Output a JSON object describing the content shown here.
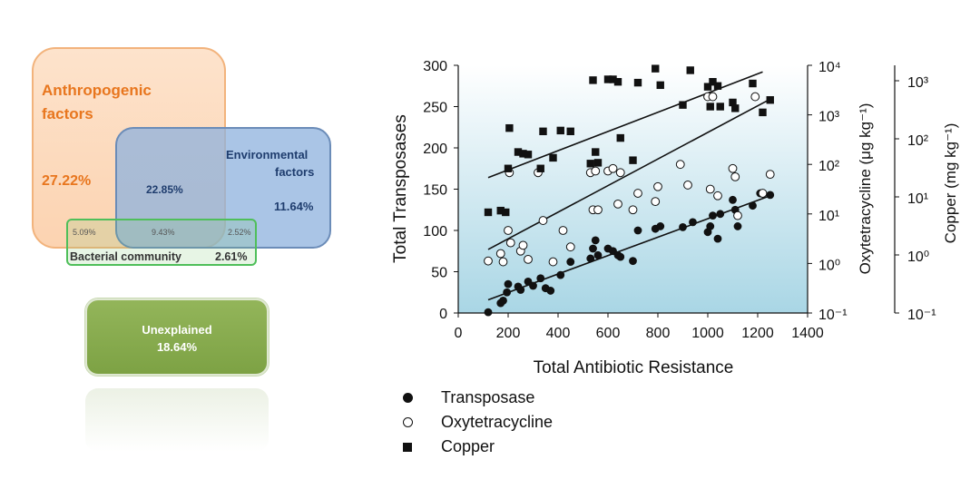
{
  "venn": {
    "anthropogenic": {
      "label_line1": "Anthropogenic",
      "label_line2": "factors",
      "value": "27.22%"
    },
    "environmental": {
      "label_line1": "Environmental",
      "label_line2": "factors",
      "value": "11.64%"
    },
    "overlap_anth_env": "22.85%",
    "bacterial": {
      "label": "Bacterial community",
      "value": "2.61%"
    },
    "overlap_anth_bac": "5.09%",
    "overlap_all": "9.43%",
    "overlap_env_bac": "2.52%",
    "unexplained": {
      "label": "Unexplained",
      "value": "18.64%"
    },
    "colors": {
      "anthropogenic": "#e8761e",
      "environmental": "#1f3d6e",
      "bacterial": "#333333",
      "unexplained": "#ffffff"
    }
  },
  "chart_data": {
    "type": "scatter",
    "xlabel": "Total Antibiotic Resistance",
    "ylabel": "Total Transposases",
    "xlim": [
      0,
      1400
    ],
    "ylim": [
      0,
      300
    ],
    "x_ticks": [
      "0",
      "200",
      "400",
      "600",
      "800",
      "1000",
      "1200",
      "1400"
    ],
    "y_ticks": [
      "0",
      "50",
      "100",
      "150",
      "200",
      "250",
      "300"
    ],
    "y2": {
      "label": "Oxytetracycline (μg kg⁻¹)",
      "scale": "log",
      "ticks": [
        "10⁻¹",
        "10⁰",
        "10¹",
        "10²",
        "10³",
        "10⁴"
      ]
    },
    "y3": {
      "label": "Copper (mg kg⁻¹)",
      "scale": "log",
      "ticks": [
        "10⁻¹",
        "10⁰",
        "10¹",
        "10²",
        "10³"
      ]
    },
    "background": [
      "#ffffff",
      "#a9d6e5"
    ],
    "legend_position": "bottom-left",
    "series": [
      {
        "name": "Transposase",
        "marker": "filled-circle",
        "points": [
          [
            120,
            1
          ],
          [
            170,
            12
          ],
          [
            180,
            15
          ],
          [
            195,
            25
          ],
          [
            200,
            35
          ],
          [
            240,
            32
          ],
          [
            250,
            28
          ],
          [
            280,
            38
          ],
          [
            300,
            33
          ],
          [
            330,
            42
          ],
          [
            350,
            30
          ],
          [
            370,
            27
          ],
          [
            410,
            46
          ],
          [
            450,
            62
          ],
          [
            530,
            66
          ],
          [
            540,
            78
          ],
          [
            550,
            88
          ],
          [
            560,
            70
          ],
          [
            600,
            78
          ],
          [
            620,
            75
          ],
          [
            640,
            70
          ],
          [
            650,
            68
          ],
          [
            700,
            63
          ],
          [
            720,
            100
          ],
          [
            790,
            102
          ],
          [
            810,
            105
          ],
          [
            900,
            104
          ],
          [
            940,
            110
          ],
          [
            1000,
            98
          ],
          [
            1010,
            105
          ],
          [
            1020,
            118
          ],
          [
            1040,
            90
          ],
          [
            1050,
            120
          ],
          [
            1100,
            137
          ],
          [
            1110,
            125
          ],
          [
            1120,
            105
          ],
          [
            1180,
            130
          ],
          [
            1210,
            145
          ],
          [
            1250,
            143
          ]
        ],
        "trend": [
          [
            120,
            16
          ],
          [
            1250,
            142
          ]
        ]
      },
      {
        "name": "Oxytetracycline",
        "marker": "open-circle",
        "points": [
          [
            120,
            63
          ],
          [
            170,
            72
          ],
          [
            180,
            62
          ],
          [
            200,
            100
          ],
          [
            205,
            170
          ],
          [
            210,
            85
          ],
          [
            250,
            75
          ],
          [
            260,
            82
          ],
          [
            280,
            65
          ],
          [
            320,
            170
          ],
          [
            340,
            112
          ],
          [
            380,
            62
          ],
          [
            420,
            100
          ],
          [
            450,
            80
          ],
          [
            530,
            170
          ],
          [
            540,
            125
          ],
          [
            550,
            172
          ],
          [
            560,
            125
          ],
          [
            600,
            172
          ],
          [
            620,
            175
          ],
          [
            640,
            132
          ],
          [
            650,
            170
          ],
          [
            700,
            125
          ],
          [
            720,
            145
          ],
          [
            790,
            135
          ],
          [
            800,
            153
          ],
          [
            890,
            180
          ],
          [
            920,
            155
          ],
          [
            1000,
            262
          ],
          [
            1010,
            150
          ],
          [
            1020,
            262
          ],
          [
            1040,
            142
          ],
          [
            1100,
            175
          ],
          [
            1110,
            165
          ],
          [
            1120,
            118
          ],
          [
            1190,
            262
          ],
          [
            1220,
            145
          ],
          [
            1250,
            168
          ]
        ],
        "trend": [
          [
            120,
            77
          ],
          [
            1250,
            259
          ]
        ]
      },
      {
        "name": "Copper",
        "marker": "filled-square",
        "points": [
          [
            120,
            122
          ],
          [
            170,
            124
          ],
          [
            190,
            122
          ],
          [
            200,
            175
          ],
          [
            205,
            224
          ],
          [
            240,
            195
          ],
          [
            260,
            193
          ],
          [
            280,
            192
          ],
          [
            330,
            175
          ],
          [
            340,
            220
          ],
          [
            380,
            188
          ],
          [
            410,
            221
          ],
          [
            450,
            220
          ],
          [
            530,
            181
          ],
          [
            540,
            282
          ],
          [
            550,
            195
          ],
          [
            560,
            182
          ],
          [
            600,
            283
          ],
          [
            620,
            283
          ],
          [
            640,
            280
          ],
          [
            650,
            212
          ],
          [
            700,
            185
          ],
          [
            720,
            279
          ],
          [
            790,
            296
          ],
          [
            810,
            276
          ],
          [
            900,
            252
          ],
          [
            930,
            294
          ],
          [
            1000,
            274
          ],
          [
            1010,
            250
          ],
          [
            1020,
            280
          ],
          [
            1040,
            275
          ],
          [
            1050,
            250
          ],
          [
            1100,
            255
          ],
          [
            1110,
            248
          ],
          [
            1180,
            278
          ],
          [
            1220,
            243
          ],
          [
            1250,
            258
          ]
        ],
        "trend": [
          [
            120,
            164
          ],
          [
            1220,
            292
          ]
        ]
      }
    ]
  }
}
